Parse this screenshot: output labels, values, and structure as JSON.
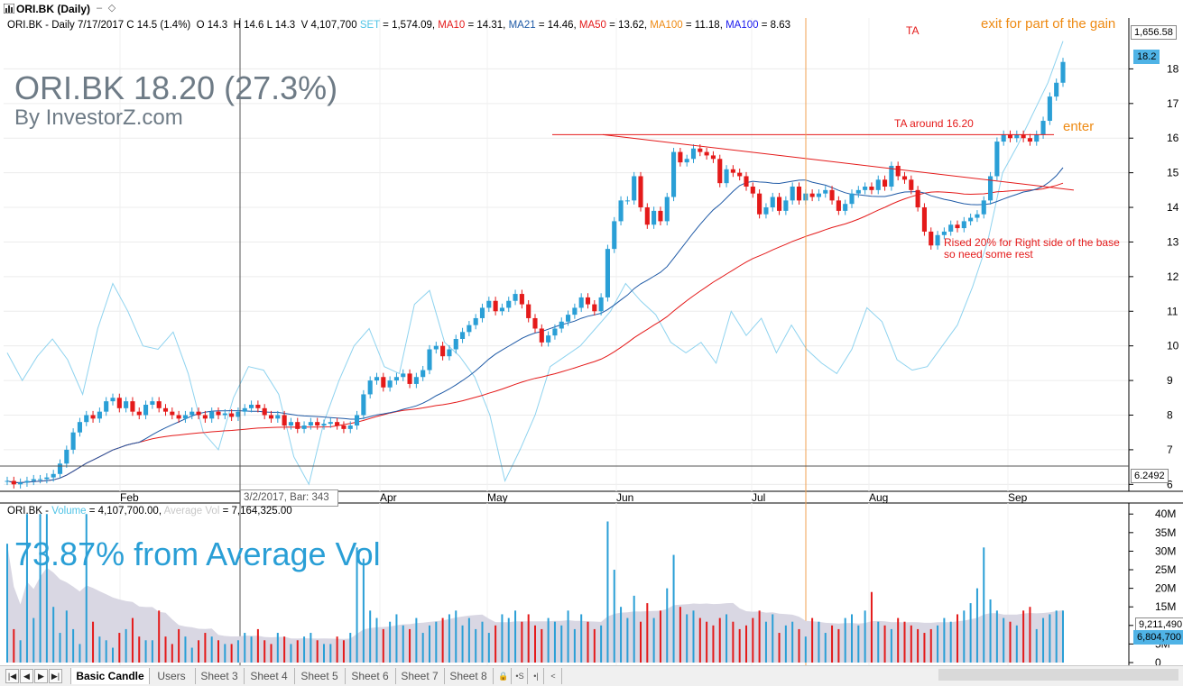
{
  "window": {
    "title": "ORI.BK (Daily)"
  },
  "price_panel": {
    "header": [
      {
        "text": "ORI.BK - Daily 7/17/2017 C 14.5 (1.4%)  O 14.3  H 14.6 L 14.3  V 4,107,700 ",
        "color": "#000000"
      },
      {
        "text": "SET",
        "color": "#4fc3e6"
      },
      {
        "text": " = 1,574.09, ",
        "color": "#000000"
      },
      {
        "text": "MA10",
        "color": "#e41a1a"
      },
      {
        "text": " = 14.31, ",
        "color": "#000000"
      },
      {
        "text": "MA21",
        "color": "#1f5aa6"
      },
      {
        "text": " = 14.46, ",
        "color": "#000000"
      },
      {
        "text": "MA50",
        "color": "#e41a1a"
      },
      {
        "text": " = 13.62, ",
        "color": "#000000"
      },
      {
        "text": "MA100",
        "color": "#ee8a13"
      },
      {
        "text": " = 11.18, ",
        "color": "#000000"
      },
      {
        "text": "MA100",
        "color": "#1a1aee"
      },
      {
        "text": " = 8.63",
        "color": "#000000"
      }
    ],
    "big_title": "ORI.BK 18.20 (27.3%)",
    "subtitle": "By InvestorZ.com",
    "annotations": {
      "ta": "TA",
      "exit": "exit for part of the gain",
      "ta_around": "TA around 16.20",
      "enter": "enter",
      "rest_line1": "Rised 20% for Right side of the base",
      "rest_line2": "so need some rest"
    },
    "tooltip": "3/2/2017, Bar: 343",
    "axis_tags": {
      "set_value": "1,656.58",
      "last_price": "18.2",
      "crosshair_price": "6.2492"
    }
  },
  "volume_panel": {
    "header": [
      {
        "text": "ORI.BK - ",
        "color": "#000000"
      },
      {
        "text": "Volume",
        "color": "#4fc3e6"
      },
      {
        "text": " = 4,107,700.00, ",
        "color": "#000000"
      },
      {
        "text": "Average Vol",
        "color": "#c8c8c8"
      },
      {
        "text": " = 7,164,325.00",
        "color": "#000000"
      }
    ],
    "big_text": "73.87% from Average Vol",
    "axis_tags": {
      "avg_a": "9,211,490",
      "avg_b": "6,804,700"
    }
  },
  "tabs": {
    "nav": [
      "|◀",
      "◀",
      "▶",
      "▶|"
    ],
    "items": [
      "Basic Candle",
      "Users",
      "Sheet 3",
      "Sheet 4",
      "Sheet 5",
      "Sheet 6",
      "Sheet 7",
      "Sheet 8"
    ],
    "active": "Basic Candle",
    "extra": [
      "🔒",
      "•S",
      "•|",
      "<"
    ]
  },
  "chart_data": {
    "type": "candlestick",
    "x_labels": [
      "Feb",
      "Apr",
      "May",
      "Jun",
      "Jul",
      "Aug",
      "Sep"
    ],
    "y_ticks": [
      6,
      7,
      8,
      9,
      10,
      11,
      12,
      13,
      14,
      15,
      16,
      17,
      18
    ],
    "ylim": [
      5.8,
      19
    ],
    "volume_ticks": [
      "40M",
      "35M",
      "30M",
      "25M",
      "20M",
      "15M",
      "10M",
      "5M",
      "0"
    ],
    "volume_ylim": [
      0,
      42
    ],
    "colors": {
      "up": "#2a9fd6",
      "down": "#e41a1a",
      "ma_fast": "#1f5aa6",
      "ma_slow": "#e41a1a",
      "set": "#8fd3ef",
      "avg_vol": "#d9d7e3"
    },
    "candles_close": [
      6.1,
      6.0,
      6.05,
      6.1,
      6.15,
      6.15,
      6.2,
      6.3,
      6.6,
      7.0,
      7.5,
      7.8,
      8.0,
      7.9,
      8.1,
      8.4,
      8.5,
      8.2,
      8.4,
      8.1,
      8.0,
      8.3,
      8.4,
      8.2,
      8.1,
      8.0,
      7.9,
      8.0,
      8.1,
      8.0,
      7.9,
      8.1,
      8.0,
      8.05,
      7.95,
      8.1,
      8.2,
      8.3,
      8.2,
      8.0,
      7.9,
      8.0,
      7.7,
      7.8,
      7.6,
      7.7,
      7.8,
      7.7,
      7.75,
      7.8,
      7.7,
      7.6,
      7.7,
      8.0,
      8.6,
      9.0,
      9.1,
      8.8,
      9.0,
      9.1,
      9.2,
      8.9,
      9.1,
      9.3,
      9.9,
      10.0,
      9.7,
      9.9,
      10.2,
      10.4,
      10.6,
      10.8,
      11.1,
      11.3,
      11.0,
      11.1,
      11.3,
      11.5,
      11.2,
      10.8,
      10.5,
      10.1,
      10.3,
      10.5,
      10.7,
      10.9,
      11.1,
      11.4,
      11.2,
      11.0,
      11.4,
      12.8,
      13.6,
      14.2,
      14.2,
      14.9,
      14.0,
      13.5,
      13.9,
      13.6,
      14.3,
      15.6,
      15.3,
      15.4,
      15.7,
      15.6,
      15.5,
      15.4,
      14.7,
      15.1,
      15.0,
      14.9,
      14.6,
      14.4,
      13.8,
      14.0,
      14.3,
      13.9,
      14.2,
      14.6,
      14.2,
      14.4,
      14.3,
      14.4,
      14.5,
      14.2,
      13.9,
      14.1,
      14.4,
      14.5,
      14.6,
      14.5,
      14.8,
      14.6,
      15.2,
      14.9,
      14.8,
      14.5,
      14.0,
      13.3,
      12.9,
      13.2,
      13.3,
      13.5,
      13.4,
      13.6,
      13.7,
      13.8,
      14.2,
      14.9,
      15.9,
      16.1,
      16.0,
      16.1,
      16.0,
      15.9,
      16.1,
      16.5,
      17.2,
      17.6,
      18.2
    ],
    "volume_est": [
      32,
      9,
      6,
      40,
      12,
      40,
      40,
      15,
      8,
      14,
      9,
      5,
      40,
      11,
      7,
      6,
      4,
      8,
      9,
      12,
      7,
      6,
      6,
      14,
      7,
      5,
      9,
      7,
      4,
      6,
      8,
      7,
      6,
      5,
      5,
      6,
      8,
      7,
      9,
      6,
      5,
      8,
      7,
      5,
      6,
      7,
      8,
      6,
      5,
      5,
      7,
      6,
      8,
      31,
      28,
      14,
      12,
      9,
      11,
      13,
      10,
      9,
      12,
      8,
      10,
      11,
      12,
      13,
      14,
      10,
      12,
      9,
      11,
      8,
      10,
      13,
      12,
      14,
      11,
      13,
      10,
      9,
      12,
      11,
      10,
      14,
      9,
      13,
      11,
      9,
      10,
      38,
      25,
      15,
      12,
      18,
      11,
      16,
      12,
      14,
      20,
      29,
      15,
      13,
      14,
      12,
      11,
      10,
      12,
      13,
      11,
      9,
      10,
      12,
      14,
      11,
      13,
      8,
      10,
      11,
      9,
      7,
      12,
      11,
      8,
      10,
      9,
      12,
      13,
      10,
      14,
      19,
      11,
      10,
      9,
      12,
      11,
      10,
      9,
      8,
      9,
      10,
      12,
      11,
      13,
      14,
      16,
      20,
      31,
      17,
      14,
      12,
      11,
      10,
      14,
      15,
      9,
      12,
      13,
      14,
      14
    ]
  }
}
